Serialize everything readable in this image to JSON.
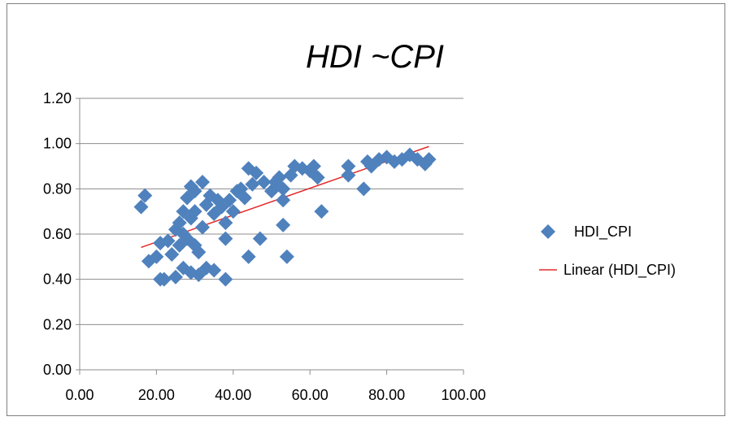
{
  "chart_data": {
    "type": "scatter",
    "title": "HDI ~CPI",
    "xlabel": "",
    "ylabel": "",
    "xlim": [
      0,
      100
    ],
    "ylim": [
      0,
      1.2
    ],
    "x_ticks": [
      "0.00",
      "20.00",
      "40.00",
      "60.00",
      "80.00",
      "100.00"
    ],
    "y_ticks": [
      "0.00",
      "0.20",
      "0.40",
      "0.60",
      "0.80",
      "1.00",
      "1.20"
    ],
    "grid": "horizontal",
    "legend_position": "right",
    "colors": {
      "marker": "#4f81bd",
      "trendline": "#e32a2a",
      "grid": "#8c8c8c",
      "axis": "#8c8c8c"
    },
    "series": [
      {
        "name": "HDI_CPI",
        "marker": "diamond",
        "points": [
          [
            16,
            0.72
          ],
          [
            17,
            0.77
          ],
          [
            18,
            0.48
          ],
          [
            20,
            0.5
          ],
          [
            21,
            0.56
          ],
          [
            21,
            0.4
          ],
          [
            22,
            0.4
          ],
          [
            23,
            0.57
          ],
          [
            24,
            0.51
          ],
          [
            25,
            0.41
          ],
          [
            25,
            0.62
          ],
          [
            26,
            0.65
          ],
          [
            26,
            0.55
          ],
          [
            27,
            0.45
          ],
          [
            27,
            0.7
          ],
          [
            27,
            0.6
          ],
          [
            28,
            0.76
          ],
          [
            28,
            0.58
          ],
          [
            29,
            0.81
          ],
          [
            29,
            0.67
          ],
          [
            29,
            0.43
          ],
          [
            30,
            0.79
          ],
          [
            30,
            0.7
          ],
          [
            30,
            0.55
          ],
          [
            31,
            0.52
          ],
          [
            31,
            0.42
          ],
          [
            32,
            0.63
          ],
          [
            32,
            0.83
          ],
          [
            33,
            0.45
          ],
          [
            33,
            0.73
          ],
          [
            34,
            0.77
          ],
          [
            35,
            0.69
          ],
          [
            35,
            0.44
          ],
          [
            36,
            0.75
          ],
          [
            37,
            0.72
          ],
          [
            38,
            0.65
          ],
          [
            38,
            0.58
          ],
          [
            38,
            0.4
          ],
          [
            39,
            0.75
          ],
          [
            40,
            0.7
          ],
          [
            41,
            0.79
          ],
          [
            42,
            0.8
          ],
          [
            43,
            0.76
          ],
          [
            44,
            0.89
          ],
          [
            44,
            0.5
          ],
          [
            45,
            0.82
          ],
          [
            46,
            0.87
          ],
          [
            47,
            0.58
          ],
          [
            48,
            0.83
          ],
          [
            50,
            0.79
          ],
          [
            51,
            0.83
          ],
          [
            52,
            0.85
          ],
          [
            53,
            0.8
          ],
          [
            53,
            0.75
          ],
          [
            53,
            0.64
          ],
          [
            54,
            0.5
          ],
          [
            55,
            0.86
          ],
          [
            56,
            0.9
          ],
          [
            58,
            0.89
          ],
          [
            60,
            0.88
          ],
          [
            61,
            0.9
          ],
          [
            62,
            0.85
          ],
          [
            63,
            0.7
          ],
          [
            70,
            0.9
          ],
          [
            70,
            0.86
          ],
          [
            74,
            0.8
          ],
          [
            75,
            0.92
          ],
          [
            76,
            0.9
          ],
          [
            78,
            0.93
          ],
          [
            80,
            0.94
          ],
          [
            82,
            0.92
          ],
          [
            84,
            0.93
          ],
          [
            86,
            0.95
          ],
          [
            88,
            0.93
          ],
          [
            90,
            0.91
          ],
          [
            91,
            0.93
          ]
        ]
      }
    ],
    "trendline": {
      "name": "Linear (HDI_CPI)",
      "type": "linear",
      "x_range": [
        16,
        91
      ]
    }
  }
}
